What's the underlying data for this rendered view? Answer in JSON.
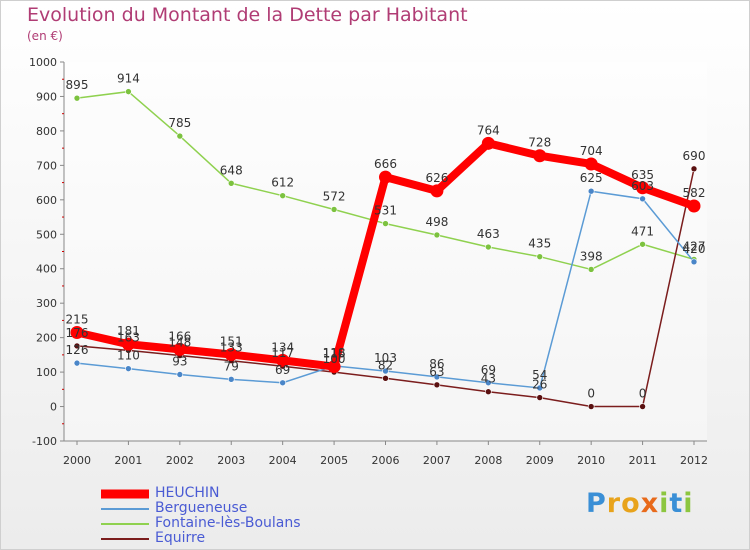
{
  "header": {
    "title": "Evolution du Montant de la Dette par Habitant",
    "subtitle": "(en €)"
  },
  "brand": {
    "text": "Proxiti"
  },
  "chart_data": {
    "type": "line",
    "title": "Evolution du Montant de la Dette par Habitant",
    "ylabel": "(en €)",
    "x": [
      "2000",
      "2001",
      "2002",
      "2003",
      "2004",
      "2005",
      "2006",
      "2007",
      "2008",
      "2009",
      "2010",
      "2011",
      "2012"
    ],
    "ylim": [
      -100,
      1000
    ],
    "yticks": [
      -100,
      0,
      100,
      200,
      300,
      400,
      500,
      600,
      700,
      800,
      900,
      1000
    ],
    "grid": false,
    "legend_position": "bottom-left",
    "series": [
      {
        "name": "HEUCHIN",
        "color": "#ff0000",
        "values": [
          215,
          181,
          166,
          151,
          134,
          116,
          666,
          626,
          764,
          728,
          704,
          635,
          582
        ]
      },
      {
        "name": "Bergueneuse",
        "color": "#5b9bd5",
        "values": [
          126,
          110,
          93,
          79,
          69,
          118,
          103,
          86,
          69,
          54,
          625,
          603,
          420
        ]
      },
      {
        "name": "Fontaine-lès-Boulans",
        "color": "#8fd14f",
        "values": [
          895,
          914,
          785,
          648,
          612,
          572,
          531,
          498,
          463,
          435,
          398,
          471,
          427
        ]
      },
      {
        "name": "Equirre",
        "color": "#7b1d1d",
        "values": [
          176,
          163,
          148,
          133,
          117,
          100,
          82,
          63,
          43,
          26,
          0,
          0,
          690
        ]
      }
    ]
  }
}
